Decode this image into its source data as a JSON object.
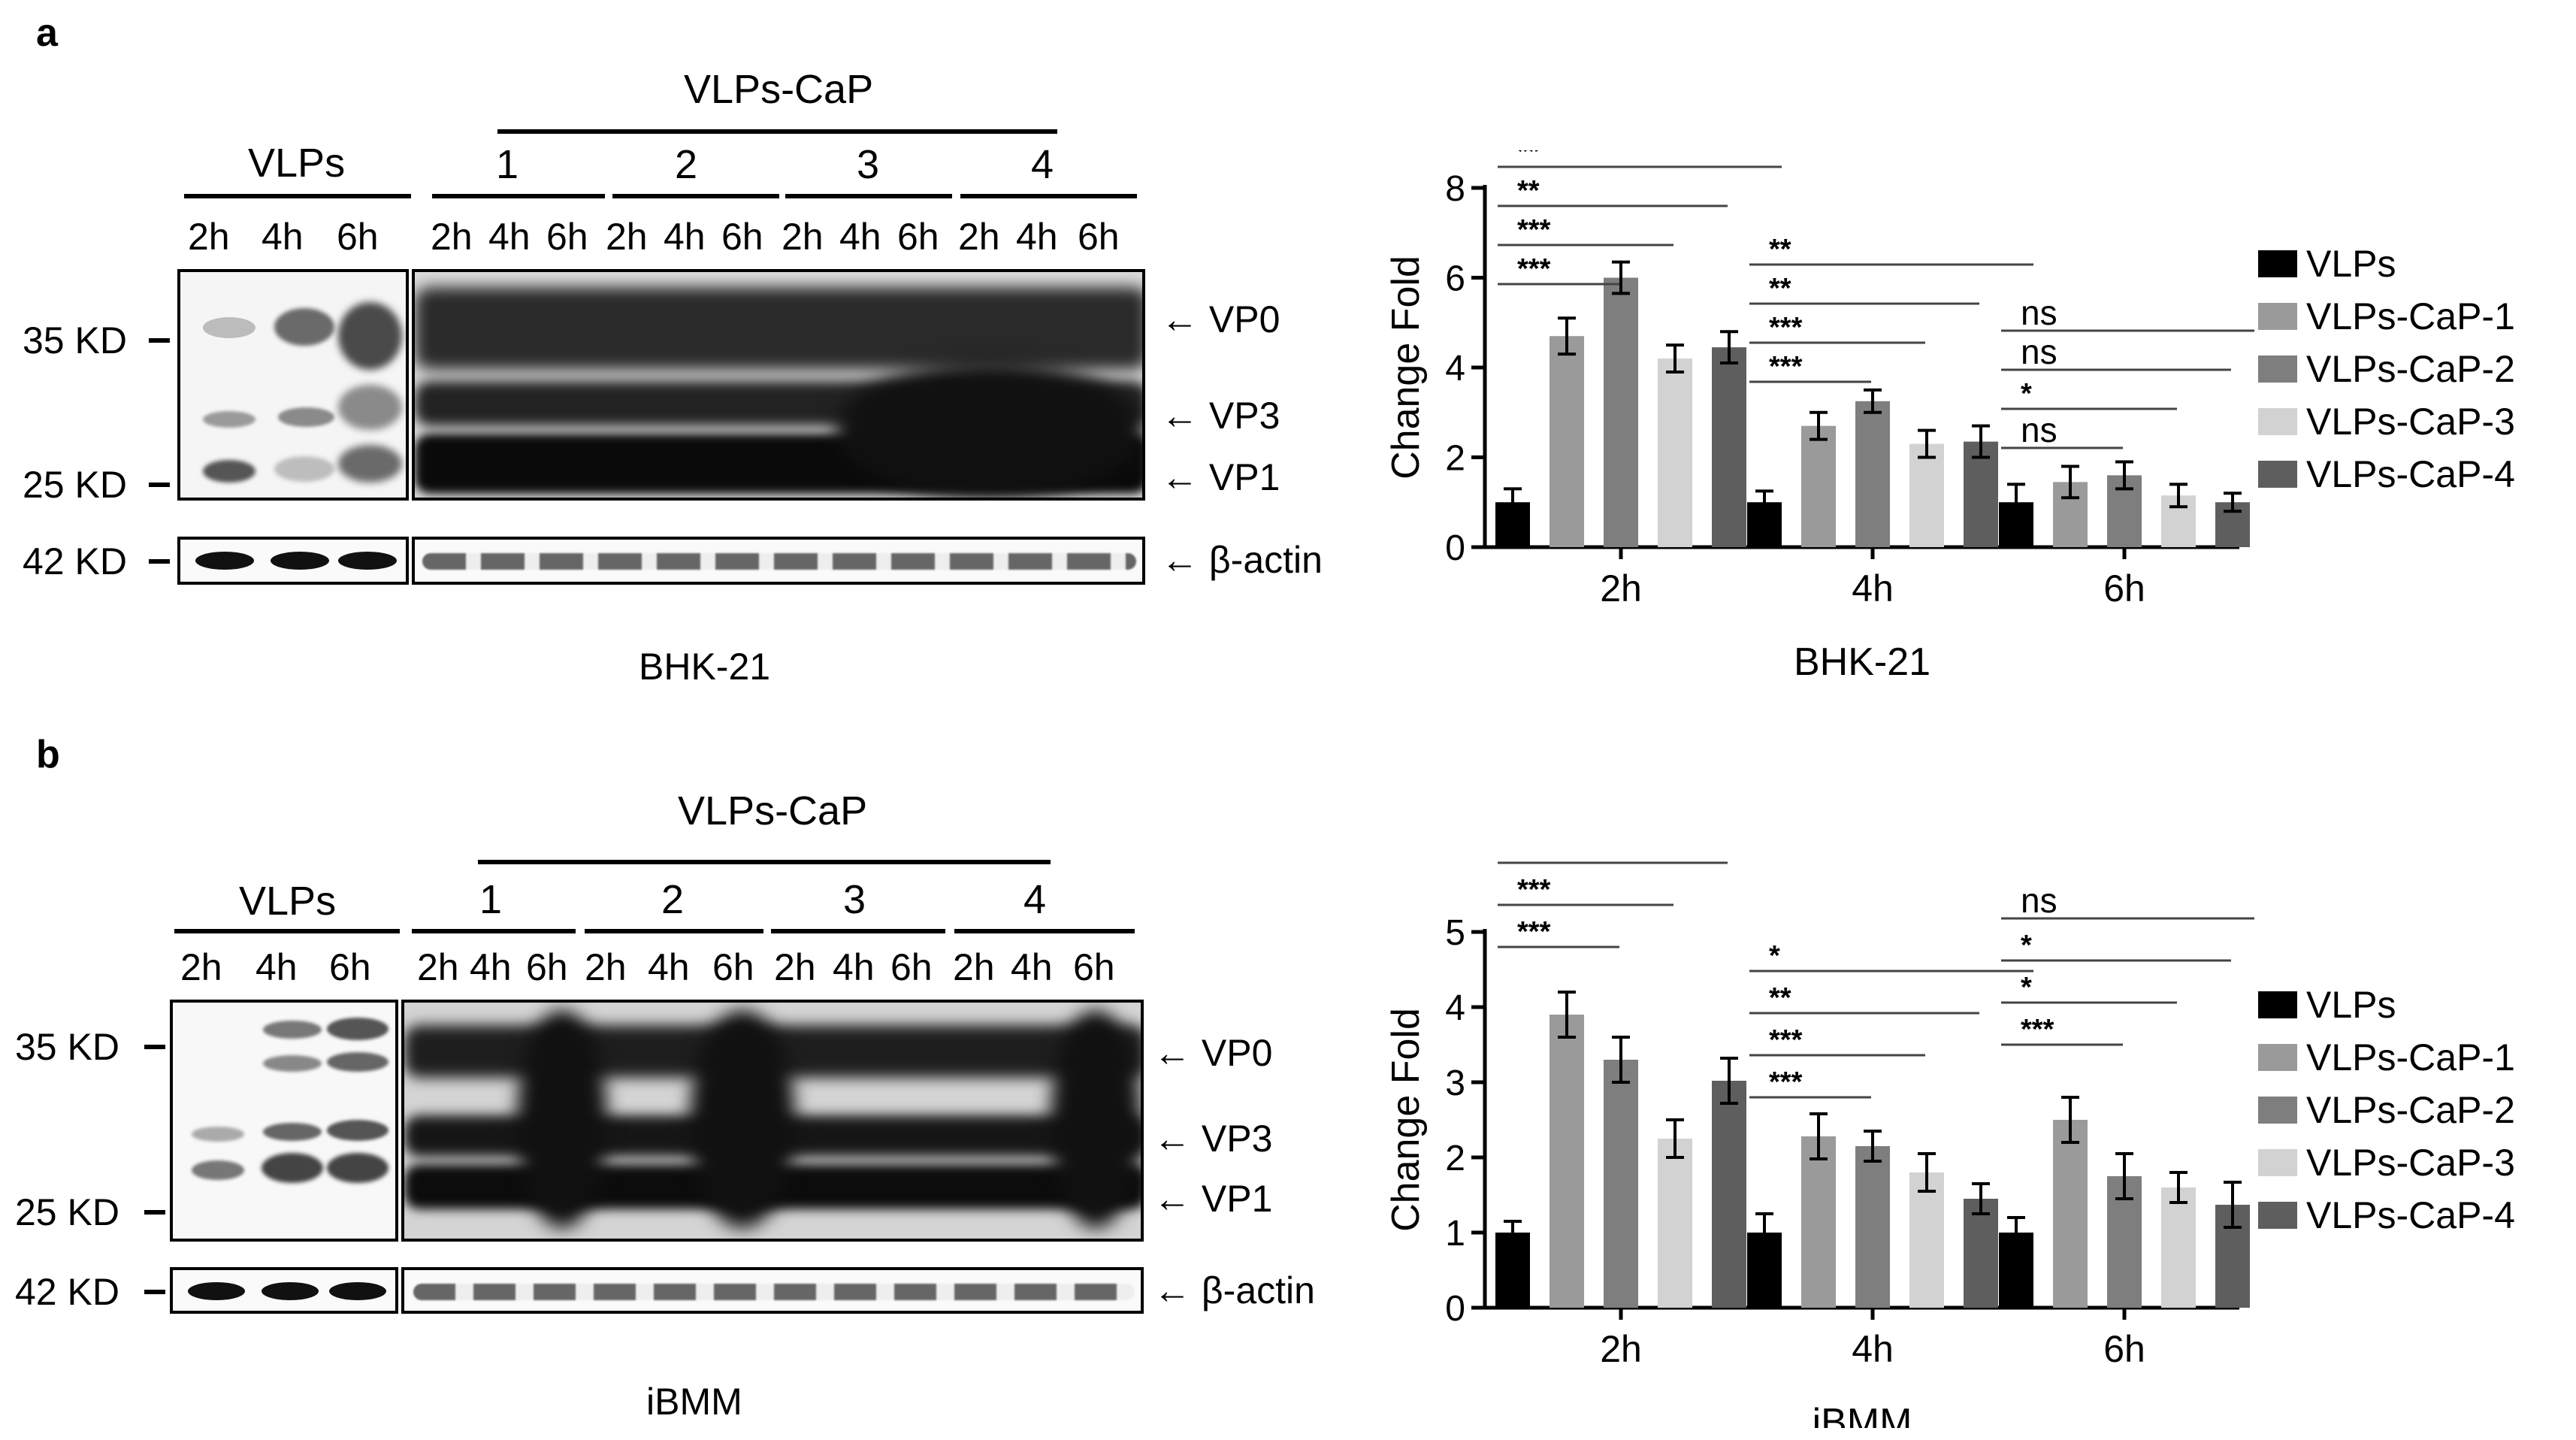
{
  "panels": [
    {
      "letter": "a",
      "group_left": "VLPs",
      "group_right": "VLPs-CaP",
      "sub_groups": [
        "1",
        "2",
        "3",
        "4"
      ],
      "lanes": [
        "2h",
        "4h",
        "6h",
        "2h",
        "4h",
        "6h",
        "2h",
        "4h",
        "6h",
        "2h",
        "4h",
        "6h",
        "2h",
        "4h",
        "6h"
      ],
      "markers": [
        "35 KD",
        "25 KD",
        "42 KD"
      ],
      "bands": [
        "VP0",
        "VP3",
        "VP1",
        "β-actin"
      ],
      "cell_line": "BHK-21"
    },
    {
      "letter": "b",
      "group_left": "VLPs",
      "group_right": "VLPs-CaP",
      "sub_groups": [
        "1",
        "2",
        "3",
        "4"
      ],
      "lanes": [
        "2h",
        "4h",
        "6h",
        "2h",
        "4h",
        "6h",
        "2h",
        "4h",
        "6h",
        "2h",
        "4h",
        "6h",
        "2h",
        "4h",
        "6h"
      ],
      "markers": [
        "35 KD",
        "25 KD",
        "42 KD"
      ],
      "bands": [
        "VP0",
        "VP3",
        "VP1",
        "β-actin"
      ],
      "cell_line": "iBMM"
    }
  ],
  "legend": [
    "VLPs",
    "VLPs-CaP-1",
    "VLPs-CaP-2",
    "VLPs-CaP-3",
    "VLPs-CaP-4"
  ],
  "colors": {
    "series": [
      "#000000",
      "#9a9a9a",
      "#7e7e7e",
      "#d2d2d2",
      "#5e5e5e"
    ]
  },
  "chart_data": [
    {
      "type": "bar",
      "categories": [
        "2h",
        "4h",
        "6h"
      ],
      "ylabel": "Change Fold",
      "xlabel": "BHK-21",
      "ylim": [
        0,
        8
      ],
      "yticks": [
        0,
        2,
        4,
        6,
        8
      ],
      "series": [
        {
          "name": "VLPs",
          "values": [
            1.0,
            1.0,
            1.0
          ],
          "errors": [
            0.3,
            0.25,
            0.4
          ]
        },
        {
          "name": "VLPs-CaP-1",
          "values": [
            4.7,
            2.7,
            1.45
          ],
          "errors": [
            0.4,
            0.3,
            0.35
          ]
        },
        {
          "name": "VLPs-CaP-2",
          "values": [
            6.0,
            3.25,
            1.6
          ],
          "errors": [
            0.35,
            0.25,
            0.3
          ]
        },
        {
          "name": "VLPs-CaP-3",
          "values": [
            4.2,
            2.3,
            1.15
          ],
          "errors": [
            0.3,
            0.3,
            0.25
          ]
        },
        {
          "name": "VLPs-CaP-4",
          "values": [
            4.45,
            2.35,
            1.0
          ],
          "errors": [
            0.35,
            0.35,
            0.2
          ]
        }
      ],
      "significance": [
        [
          {
            "target": 1,
            "label": "***"
          },
          {
            "target": 2,
            "label": "***"
          },
          {
            "target": 3,
            "label": "**"
          },
          {
            "target": 4,
            "label": "**"
          }
        ],
        [
          {
            "target": 1,
            "label": "***"
          },
          {
            "target": 2,
            "label": "***"
          },
          {
            "target": 3,
            "label": "**"
          },
          {
            "target": 4,
            "label": "**"
          }
        ],
        [
          {
            "target": 1,
            "label": "ns"
          },
          {
            "target": 2,
            "label": "*"
          },
          {
            "target": 3,
            "label": "ns"
          },
          {
            "target": 4,
            "label": "ns"
          }
        ]
      ]
    },
    {
      "type": "bar",
      "categories": [
        "2h",
        "4h",
        "6h"
      ],
      "ylabel": "Change Fold",
      "xlabel": "iBMM",
      "ylim": [
        0,
        5
      ],
      "yticks": [
        0,
        1,
        2,
        3,
        4,
        5
      ],
      "series": [
        {
          "name": "VLPs",
          "values": [
            1.0,
            1.0,
            1.0
          ],
          "errors": [
            0.15,
            0.25,
            0.2
          ]
        },
        {
          "name": "VLPs-CaP-1",
          "values": [
            3.9,
            2.28,
            2.5
          ],
          "errors": [
            0.3,
            0.3,
            0.3
          ]
        },
        {
          "name": "VLPs-CaP-2",
          "values": [
            3.3,
            2.15,
            1.75
          ],
          "errors": [
            0.3,
            0.2,
            0.3
          ]
        },
        {
          "name": "VLPs-CaP-3",
          "values": [
            2.25,
            1.8,
            1.6
          ],
          "errors": [
            0.25,
            0.25,
            0.2
          ]
        },
        {
          "name": "VLPs-CaP-4",
          "values": [
            3.02,
            1.45,
            1.37
          ],
          "errors": [
            0.3,
            0.2,
            0.3
          ]
        }
      ],
      "significance": [
        [
          {
            "target": 1,
            "label": "***"
          },
          {
            "target": 2,
            "label": "***"
          },
          {
            "target": 3,
            "label": "***"
          },
          {
            "target": 4,
            "label": "***"
          }
        ],
        [
          {
            "target": 1,
            "label": "***"
          },
          {
            "target": 2,
            "label": "***"
          },
          {
            "target": 3,
            "label": "**"
          },
          {
            "target": 4,
            "label": "*"
          }
        ],
        [
          {
            "target": 1,
            "label": "***"
          },
          {
            "target": 2,
            "label": "*"
          },
          {
            "target": 3,
            "label": "*"
          },
          {
            "target": 4,
            "label": "ns"
          }
        ]
      ]
    }
  ]
}
